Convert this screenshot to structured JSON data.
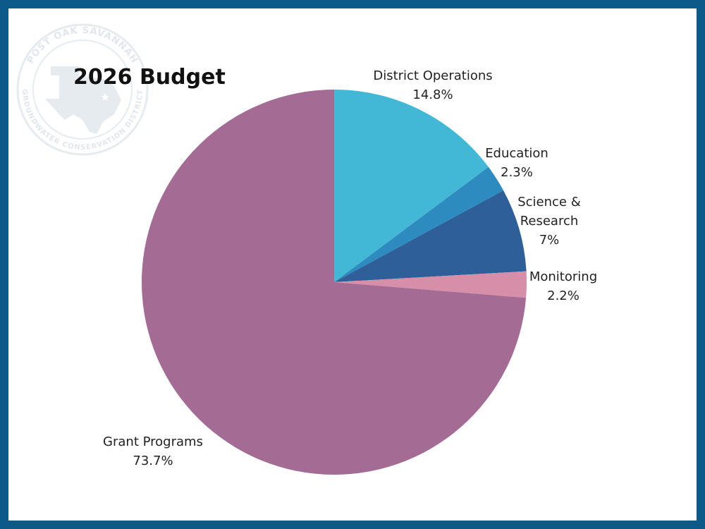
{
  "chart_data": {
    "type": "pie",
    "title": "2026 Budget",
    "slices": [
      {
        "name": "District Operations",
        "label_lines": [
          "District Operations"
        ],
        "value": 14.8,
        "value_label": "14.8%",
        "color": "#43b7d6"
      },
      {
        "name": "Education",
        "label_lines": [
          "Education"
        ],
        "value": 2.3,
        "value_label": "2.3%",
        "color": "#2d8bbf"
      },
      {
        "name": "Science & Research",
        "label_lines": [
          "Science &",
          "Research"
        ],
        "value": 7,
        "value_label": "7%",
        "color": "#2e5f98"
      },
      {
        "name": "Monitoring",
        "label_lines": [
          "Monitoring"
        ],
        "value": 2.2,
        "value_label": "2.2%",
        "color": "#d68ea9"
      },
      {
        "name": "Grant Programs",
        "label_lines": [
          "Grant Programs"
        ],
        "value": 73.7,
        "value_label": "73.7%",
        "color": "#a46c95"
      }
    ]
  },
  "seal": {
    "top_text": "POST OAK SAVANNAH",
    "bottom_text": "GROUNDWATER CONSERVATION DISTRICT"
  },
  "colors": {
    "border": "#0b5a8a",
    "background": "#ffffff"
  }
}
